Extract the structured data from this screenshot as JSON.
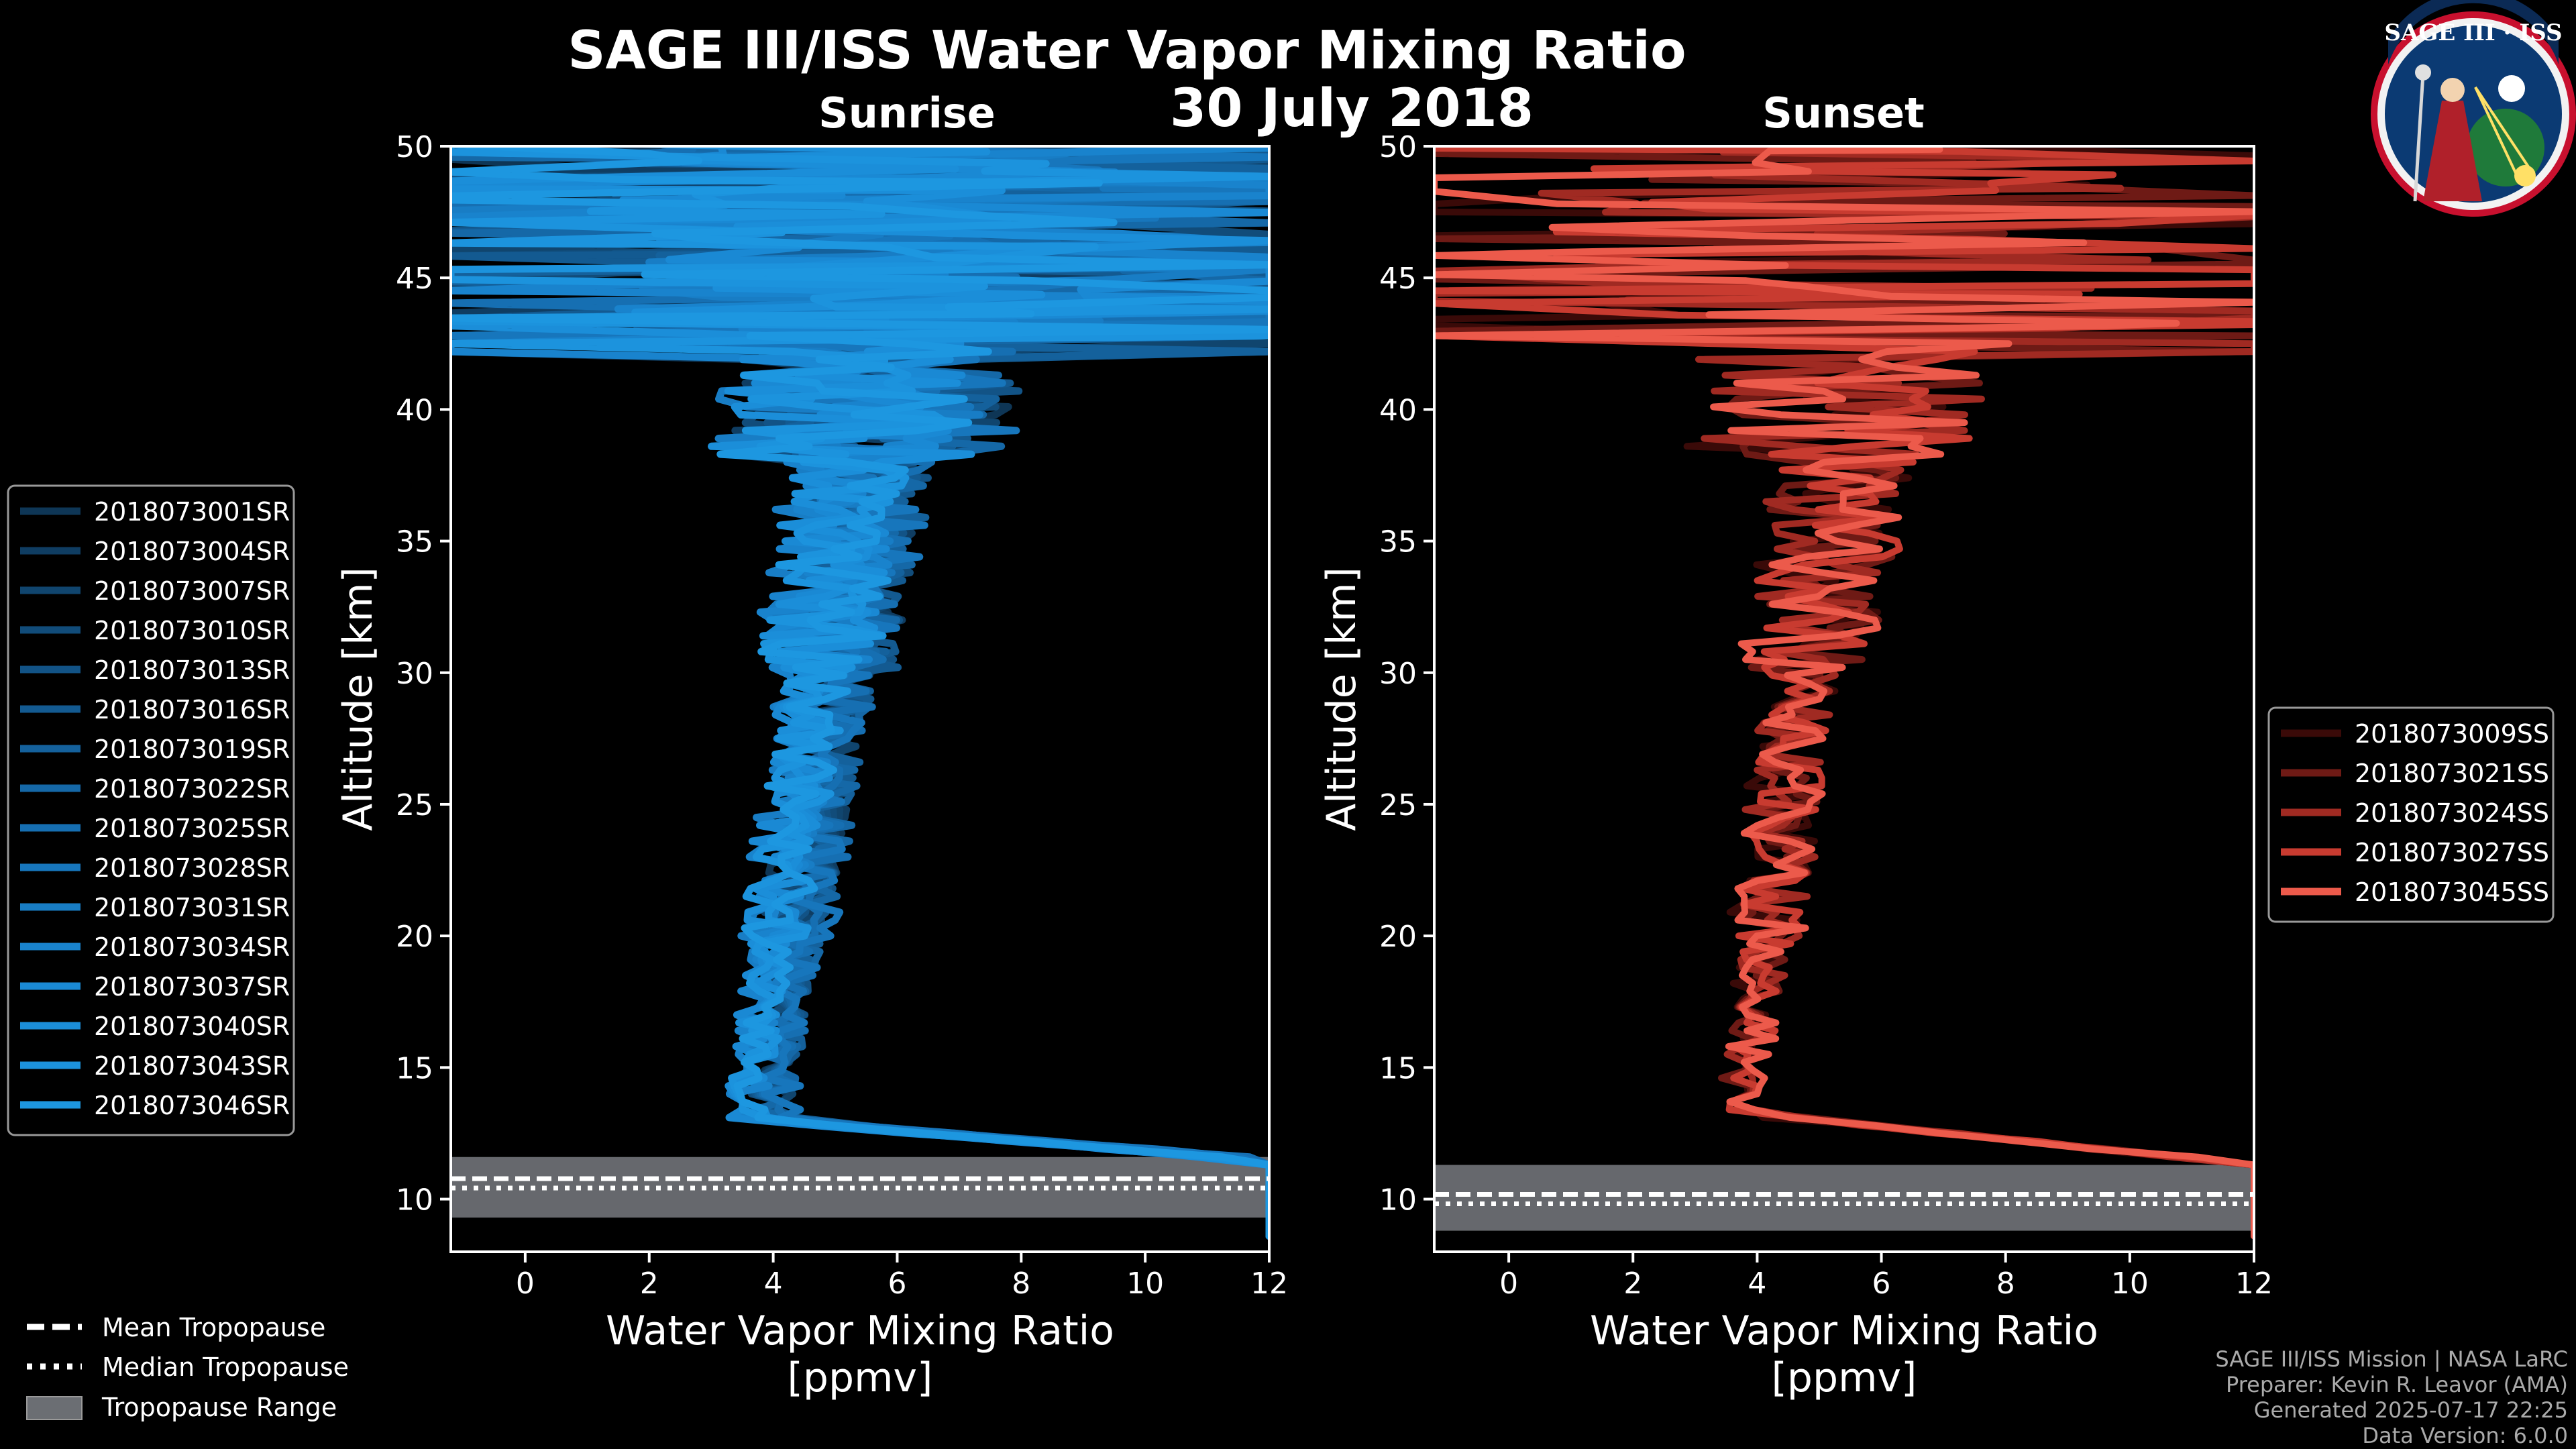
{
  "title": "SAGE III/ISS Water Vapor Mixing Ratio",
  "date": "30 July 2018",
  "chart_data": [
    {
      "type": "line",
      "panel": "Sunrise",
      "title": "Sunrise",
      "xlabel": "Water Vapor Mixing Ratio",
      "xlabel_units": "[ppmv]",
      "ylabel": "Altitude [km]",
      "xlim": [
        -1.2,
        12
      ],
      "ylim": [
        8,
        50
      ],
      "xticks": [
        0,
        2,
        4,
        6,
        8,
        10,
        12
      ],
      "yticks": [
        10,
        15,
        20,
        25,
        30,
        35,
        40,
        45,
        50
      ],
      "xtick_labels": [
        "0",
        "2",
        "4",
        "6",
        "8",
        "10",
        "12"
      ],
      "ytick_labels": [
        "10",
        "15",
        "20",
        "25",
        "30",
        "35",
        "40",
        "45",
        "50"
      ],
      "legend_position": "left",
      "line_color": "#1e8fd8",
      "series": [
        {
          "name": "2018073001SR",
          "color": "#0e3656"
        },
        {
          "name": "2018073004SR",
          "color": "#0f3d62"
        },
        {
          "name": "2018073007SR",
          "color": "#10456e"
        },
        {
          "name": "2018073010SR",
          "color": "#114c7a"
        },
        {
          "name": "2018073013SR",
          "color": "#125386"
        },
        {
          "name": "2018073016SR",
          "color": "#135a91"
        },
        {
          "name": "2018073019SR",
          "color": "#14619c"
        },
        {
          "name": "2018073022SR",
          "color": "#1568a7"
        },
        {
          "name": "2018073025SR",
          "color": "#166fb2"
        },
        {
          "name": "2018073028SR",
          "color": "#1776bc"
        },
        {
          "name": "2018073031SR",
          "color": "#187dc5"
        },
        {
          "name": "2018073034SR",
          "color": "#1983cd"
        },
        {
          "name": "2018073037SR",
          "color": "#1a89d4"
        },
        {
          "name": "2018073040SR",
          "color": "#1b8ed9"
        },
        {
          "name": "2018073043SR",
          "color": "#1c93dd"
        },
        {
          "name": "2018073046SR",
          "color": "#1d97e0"
        }
      ],
      "tropopause": {
        "mean_km": 10.6,
        "median_km": 10.6,
        "range_km": [
          9.3,
          11.6
        ]
      }
    },
    {
      "type": "line",
      "panel": "Sunset",
      "title": "Sunset",
      "xlabel": "Water Vapor Mixing Ratio",
      "xlabel_units": "[ppmv]",
      "ylabel": "Altitude [km]",
      "xlim": [
        -1.2,
        12
      ],
      "ylim": [
        8,
        50
      ],
      "xticks": [
        0,
        2,
        4,
        6,
        8,
        10,
        12
      ],
      "yticks": [
        10,
        15,
        20,
        25,
        30,
        35,
        40,
        45,
        50
      ],
      "xtick_labels": [
        "0",
        "2",
        "4",
        "6",
        "8",
        "10",
        "12"
      ],
      "ytick_labels": [
        "10",
        "15",
        "20",
        "25",
        "30",
        "35",
        "40",
        "45",
        "50"
      ],
      "legend_position": "right",
      "line_color": "#e8574a",
      "series": [
        {
          "name": "2018073009SS",
          "color": "#3a0a08"
        },
        {
          "name": "2018073021SS",
          "color": "#6e1a15"
        },
        {
          "name": "2018073024SS",
          "color": "#a02a22"
        },
        {
          "name": "2018073027SS",
          "color": "#c83b30"
        },
        {
          "name": "2018073045SS",
          "color": "#ec5a4b"
        }
      ],
      "tropopause": {
        "mean_km": 10.0,
        "median_km": 10.0,
        "range_km": [
          8.8,
          11.3
        ]
      }
    }
  ],
  "shared_legend": {
    "mean": "Mean Tropopause",
    "median": "Median Tropopause",
    "range": "Tropopause Range"
  },
  "logo": {
    "text": "SAGE III · ISS"
  },
  "footer": {
    "line1": "SAGE III/ISS Mission | NASA LaRC",
    "line2": "Preparer: Kevin R. Leavor (AMA)",
    "line3": "Generated 2025-07-17 22:25",
    "line4": "Data Version: 6.0.0"
  },
  "colors": {
    "background": "#000000",
    "sunrise": "#1e8fd8",
    "sunset": "#e8574a",
    "tropopause_range": "#6b6e73"
  }
}
